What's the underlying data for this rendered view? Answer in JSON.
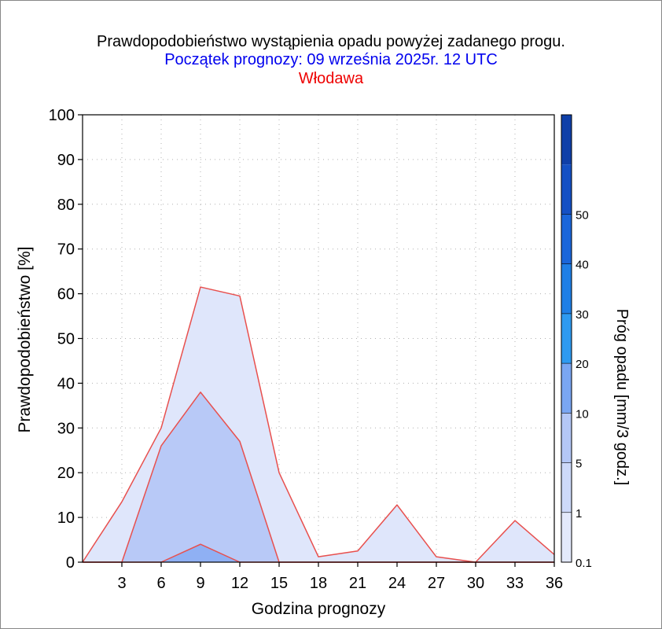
{
  "title": "Prawdopodobieństwo wystąpienia opadu powyżej zadanego progu.",
  "subtitle": "Początek prognozy: 09 września 2025r. 12 UTC",
  "location": "Włodawa",
  "chart_data": {
    "type": "area",
    "title": "Prawdopodobieństwo wystąpienia opadu powyżej zadanego progu.",
    "xlabel": "Godzina prognozy",
    "ylabel": "Prawdopodobieństwo [%]",
    "colorbar_label": "Próg opadu [mm/3 godz.]",
    "x": [
      0,
      3,
      6,
      9,
      12,
      15,
      18,
      21,
      24,
      27,
      30,
      33,
      36
    ],
    "xticks": [
      "3",
      "6",
      "9",
      "12",
      "15",
      "18",
      "21",
      "24",
      "27",
      "30",
      "33",
      "36"
    ],
    "xlim": [
      0,
      36
    ],
    "ylim": [
      0,
      100
    ],
    "yticks": [
      "0",
      "10",
      "20",
      "30",
      "40",
      "50",
      "60",
      "70",
      "80",
      "90",
      "100"
    ],
    "grid": true,
    "series": [
      {
        "name": "0.1",
        "color": "#dfe6fb",
        "values": [
          0,
          13.5,
          30,
          61.5,
          59.5,
          20,
          1.2,
          2.5,
          12.8,
          1.2,
          0,
          9.3,
          1.7
        ]
      },
      {
        "name": "1",
        "color": "#b8c9f7",
        "values": [
          0,
          0,
          26,
          38,
          27,
          0,
          0,
          0,
          0,
          0,
          0,
          0,
          0
        ]
      },
      {
        "name": "5",
        "color": "#8fb0f4",
        "values": [
          0,
          0,
          0,
          4,
          0,
          0,
          0,
          0,
          0,
          0,
          0,
          0,
          0
        ]
      }
    ],
    "colorbar": {
      "labels": [
        "0.1",
        "1",
        "5",
        "10",
        "20",
        "30",
        "40",
        "50"
      ],
      "colors": [
        "#e3e9fb",
        "#cdd9f9",
        "#b4c7f6",
        "#7aa6f2",
        "#2e9af0",
        "#1f7fe6",
        "#1a66da",
        "#1450c4",
        "#0f3fa8"
      ]
    }
  }
}
